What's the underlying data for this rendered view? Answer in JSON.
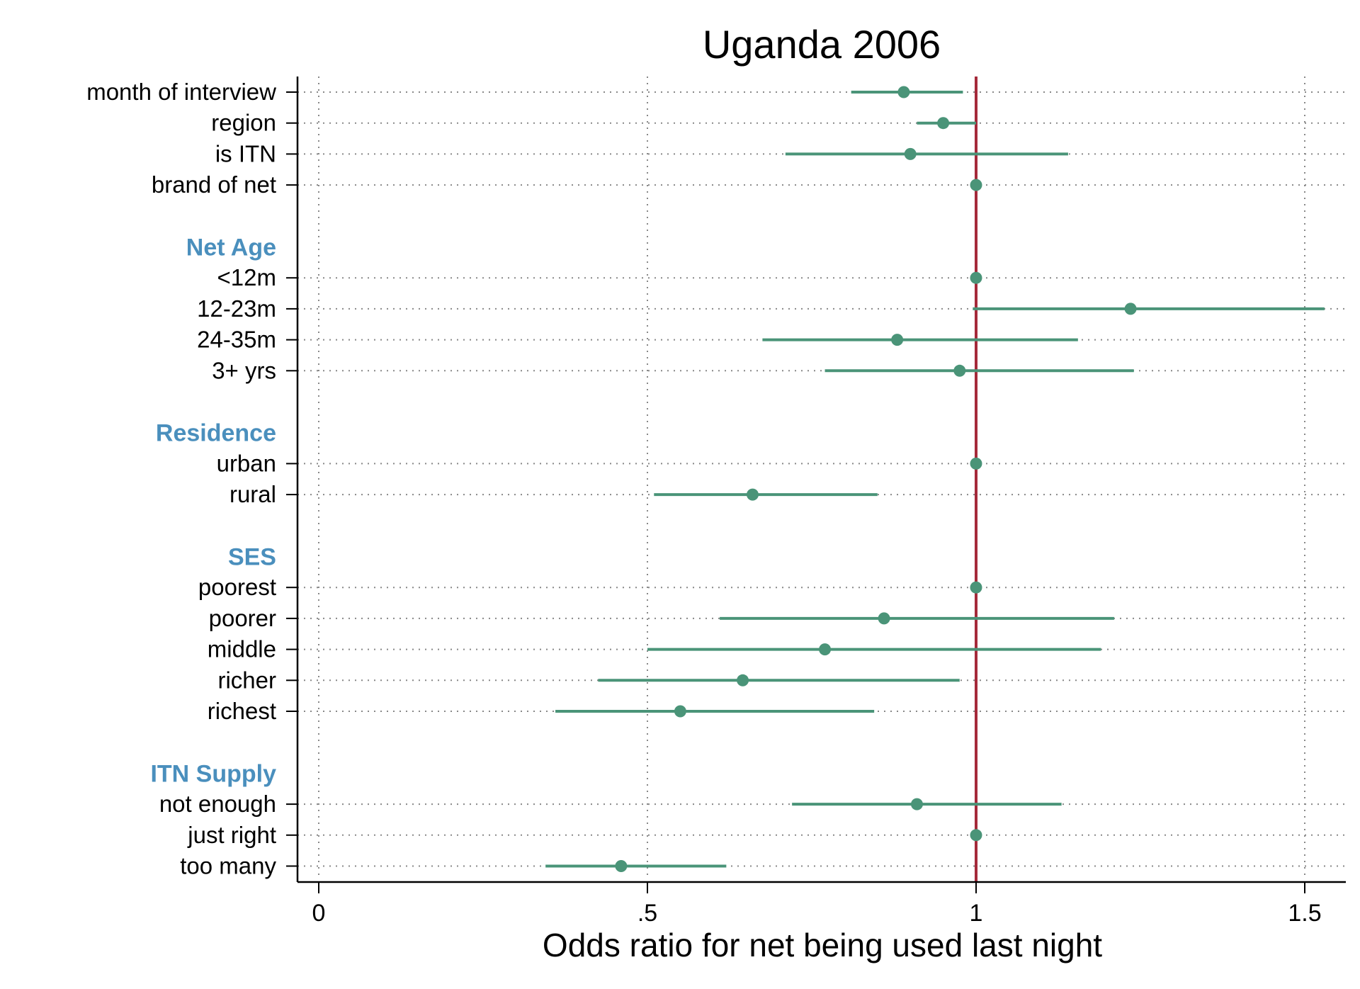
{
  "chart_data": {
    "type": "scatter",
    "subtype": "forest-plot",
    "title": "Uganda 2006",
    "xlabel": "Odds ratio for net being used last night",
    "ylabel": "",
    "xlim": [
      0,
      1.53
    ],
    "xticks": [
      {
        "value": 0,
        "label": "0"
      },
      {
        "value": 0.5,
        "label": ".5"
      },
      {
        "value": 1,
        "label": "1"
      },
      {
        "value": 1.5,
        "label": "1.5"
      }
    ],
    "reference_line": 1,
    "grid": true,
    "colors": {
      "point": "#4a9478",
      "ci": "#4a9478",
      "reference": "#a52a3a",
      "header": "#4a8fbd",
      "grid": "#888888",
      "axis": "#000000"
    },
    "rows": [
      {
        "label": "month of interview",
        "estimate": 0.89,
        "lower": 0.81,
        "upper": 0.98
      },
      {
        "label": "region",
        "estimate": 0.95,
        "lower": 0.91,
        "upper": 1.0
      },
      {
        "label": "is ITN",
        "estimate": 0.9,
        "lower": 0.71,
        "upper": 1.14
      },
      {
        "label": "brand of net",
        "estimate": 1.0
      },
      {
        "label": "",
        "spacer": true
      },
      {
        "label": "Net Age",
        "header": true
      },
      {
        "label": "<12m",
        "estimate": 1.0
      },
      {
        "label": "12-23m",
        "estimate": 1.235,
        "lower": 0.995,
        "upper": 1.53
      },
      {
        "label": "24-35m",
        "estimate": 0.88,
        "lower": 0.675,
        "upper": 1.155
      },
      {
        "label": "3+ yrs",
        "estimate": 0.975,
        "lower": 0.77,
        "upper": 1.24
      },
      {
        "label": "",
        "spacer": true
      },
      {
        "label": "Residence",
        "header": true
      },
      {
        "label": "urban",
        "estimate": 1.0
      },
      {
        "label": "rural",
        "estimate": 0.66,
        "lower": 0.51,
        "upper": 0.85
      },
      {
        "label": "",
        "spacer": true
      },
      {
        "label": "SES",
        "header": true
      },
      {
        "label": "poorest",
        "estimate": 1.0
      },
      {
        "label": "poorer",
        "estimate": 0.86,
        "lower": 0.61,
        "upper": 1.21
      },
      {
        "label": "middle",
        "estimate": 0.77,
        "lower": 0.5,
        "upper": 1.19
      },
      {
        "label": "richer",
        "estimate": 0.645,
        "lower": 0.425,
        "upper": 0.975
      },
      {
        "label": "richest",
        "estimate": 0.55,
        "lower": 0.36,
        "upper": 0.845
      },
      {
        "label": "",
        "spacer": true
      },
      {
        "label": "ITN Supply",
        "header": true
      },
      {
        "label": "not enough",
        "estimate": 0.91,
        "lower": 0.72,
        "upper": 1.13
      },
      {
        "label": "just right",
        "estimate": 1.0
      },
      {
        "label": "too many",
        "estimate": 0.46,
        "lower": 0.345,
        "upper": 0.62
      }
    ]
  }
}
